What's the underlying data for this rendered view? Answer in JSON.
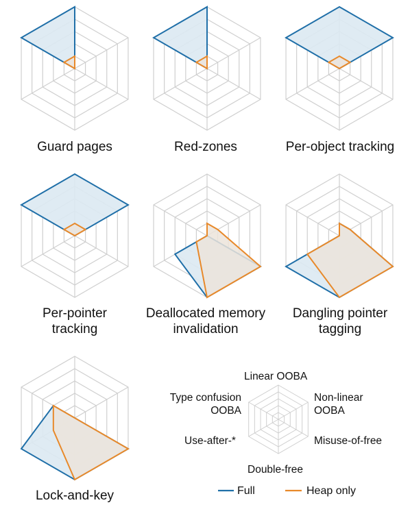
{
  "axes": [
    "Linear OOBA",
    "Non-linear OOBA",
    "Misuse-of-free",
    "Double-free",
    "Use-after-*",
    "Type confusion OOBA"
  ],
  "axis_labels_display": {
    "linear": "Linear OOBA",
    "nonlinear": "Non-linear\nOOBA",
    "misuse": "Misuse-of-free",
    "doublefree": "Double-free",
    "useafter": "Use-after-*",
    "typeconf": "Type confusion\nOOBA"
  },
  "legend": {
    "full": "Full",
    "heap": "Heap only"
  },
  "colors": {
    "full": "#1f6fa8",
    "full_fill": "#dce9f2",
    "heap": "#e8892a",
    "heap_fill": "#ece4da",
    "grid": "#cfcfcf"
  },
  "chart_data": [
    {
      "type": "radar",
      "title": "Guard pages",
      "series": [
        {
          "name": "Full",
          "values": [
            5,
            0,
            0,
            0,
            0,
            5
          ]
        },
        {
          "name": "Heap only",
          "values": [
            1,
            0,
            0,
            0,
            0,
            1
          ]
        }
      ],
      "rmax": 5
    },
    {
      "type": "radar",
      "title": "Red-zones",
      "series": [
        {
          "name": "Full",
          "values": [
            5,
            0,
            0,
            0,
            0,
            5
          ]
        },
        {
          "name": "Heap only",
          "values": [
            1,
            0,
            0,
            0,
            0,
            1
          ]
        }
      ],
      "rmax": 5
    },
    {
      "type": "radar",
      "title": "Per-object tracking",
      "series": [
        {
          "name": "Full",
          "values": [
            5,
            5,
            0,
            0,
            0,
            5
          ]
        },
        {
          "name": "Heap only",
          "values": [
            1,
            1,
            0,
            0,
            0,
            1
          ]
        }
      ],
      "rmax": 5
    },
    {
      "type": "radar",
      "title": "Per-pointer tracking",
      "series": [
        {
          "name": "Full",
          "values": [
            5,
            5,
            0,
            0,
            0,
            5
          ]
        },
        {
          "name": "Heap only",
          "values": [
            1,
            1,
            0,
            0,
            0,
            1
          ]
        }
      ],
      "rmax": 5
    },
    {
      "type": "radar",
      "title": "Deallocated memory invalidation",
      "series": [
        {
          "name": "Full",
          "values": [
            0,
            0,
            5,
            5,
            3,
            0
          ]
        },
        {
          "name": "Heap only",
          "values": [
            1,
            1,
            5,
            5,
            1,
            0
          ]
        }
      ],
      "rmax": 5
    },
    {
      "type": "radar",
      "title": "Dangling pointer tagging",
      "series": [
        {
          "name": "Full",
          "values": [
            1,
            1,
            5,
            5,
            5,
            0
          ]
        },
        {
          "name": "Heap only",
          "values": [
            1,
            1,
            5,
            5,
            3,
            0
          ]
        }
      ],
      "rmax": 5
    },
    {
      "type": "radar",
      "title": "Lock-and-key",
      "series": [
        {
          "name": "Full",
          "values": [
            0,
            0,
            5,
            5,
            5,
            2
          ]
        },
        {
          "name": "Heap only",
          "values": [
            0,
            0,
            5,
            5,
            2,
            2
          ]
        }
      ],
      "rmax": 5
    }
  ],
  "titles_display": {
    "c0": "Guard pages",
    "c1": "Red-zones",
    "c2": "Per-object tracking",
    "c3": "Per-pointer\ntracking",
    "c4": "Deallocated memory\ninvalidation",
    "c5": "Dangling pointer\ntagging",
    "c6": "Lock-and-key"
  }
}
